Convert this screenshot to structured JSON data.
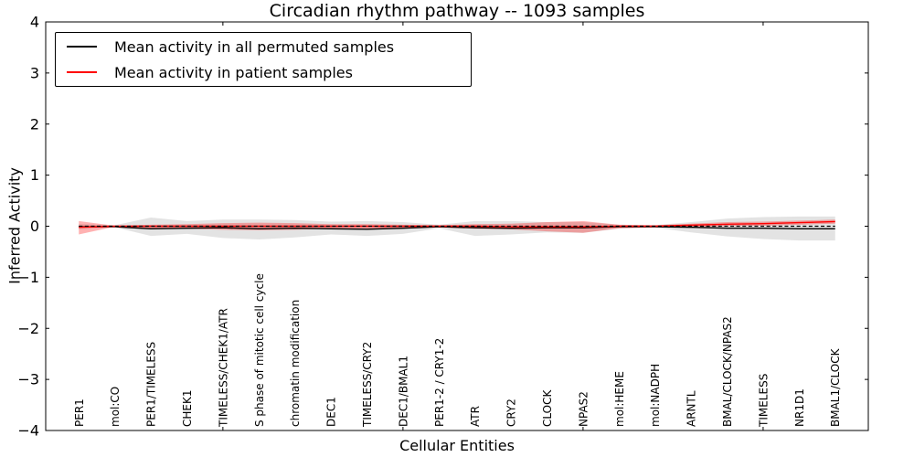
{
  "chart_data": {
    "type": "line",
    "title": "Circadian rhythm pathway -- 1093 samples",
    "xlabel": "Cellular Entities",
    "ylabel": "Inferred Activity",
    "ylim": [
      -4,
      4
    ],
    "xlim": [
      0.08,
      22.92
    ],
    "yticks": [
      -4,
      -3,
      -2,
      -1,
      0,
      1,
      2,
      3,
      4
    ],
    "xticks": [
      5,
      10,
      15,
      20
    ],
    "grid": false,
    "legend_position": "upper left",
    "zero_line": {
      "y": 0,
      "style": "dashed",
      "color": "#000000"
    },
    "categories": [
      "PER1",
      "mol:CO",
      "PER1/TIMELESS",
      "CHEK1",
      "TIMELESS/CHEK1/ATR",
      "S phase of mitotic cell cycle",
      "chromatin modification",
      "DEC1",
      "TIMELESS/CRY2",
      "DEC1/BMAL1",
      "PER1-2 / CRY1-2",
      "ATR",
      "CRY2",
      "CLOCK",
      "NPAS2",
      "mol:HEME",
      "mol:NADPH",
      "ARNTL",
      "BMAL/CLOCK/NPAS2",
      "TIMELESS",
      "NR1D1",
      "BMAL1/CLOCK"
    ],
    "series": [
      {
        "name": "Mean activity in all permuted samples",
        "color": "#000000",
        "band_color": "#808080",
        "band_opacity": 0.22,
        "values": [
          -0.01,
          -0.01,
          -0.05,
          -0.04,
          -0.03,
          -0.05,
          -0.04,
          -0.05,
          -0.06,
          -0.04,
          -0.01,
          -0.03,
          -0.04,
          -0.03,
          -0.03,
          -0.01,
          -0.01,
          -0.02,
          -0.04,
          -0.04,
          -0.05,
          -0.05
        ],
        "band_high": [
          0.04,
          0.02,
          0.17,
          0.1,
          0.13,
          0.13,
          0.12,
          0.09,
          0.1,
          0.08,
          0.03,
          0.1,
          0.1,
          0.08,
          0.08,
          0.03,
          0.02,
          0.08,
          0.15,
          0.18,
          0.19,
          0.19
        ],
        "band_low": [
          -0.06,
          -0.02,
          -0.19,
          -0.15,
          -0.23,
          -0.26,
          -0.22,
          -0.16,
          -0.19,
          -0.15,
          -0.04,
          -0.19,
          -0.16,
          -0.12,
          -0.13,
          -0.05,
          -0.03,
          -0.12,
          -0.2,
          -0.25,
          -0.28,
          -0.28
        ]
      },
      {
        "name": "Mean activity in patient samples",
        "color": "#ff0000",
        "band_color": "#ff0000",
        "band_opacity": 0.3,
        "values": [
          -0.02,
          0.0,
          0.0,
          0.0,
          0.0,
          0.0,
          0.0,
          0.0,
          0.0,
          0.0,
          0.0,
          0.0,
          -0.01,
          -0.01,
          -0.01,
          0.0,
          0.0,
          0.02,
          0.04,
          0.05,
          0.07,
          0.09
        ],
        "band_high": [
          0.1,
          0.01,
          0.03,
          0.04,
          0.06,
          0.07,
          0.06,
          0.04,
          0.04,
          0.03,
          0.02,
          0.04,
          0.05,
          0.08,
          0.1,
          0.03,
          0.02,
          0.05,
          0.08,
          0.09,
          0.11,
          0.13
        ],
        "band_low": [
          -0.16,
          -0.01,
          -0.04,
          -0.05,
          -0.07,
          -0.08,
          -0.07,
          -0.05,
          -0.05,
          -0.04,
          -0.02,
          -0.05,
          -0.06,
          -0.1,
          -0.13,
          -0.04,
          -0.02,
          -0.02,
          0.0,
          0.01,
          0.03,
          0.05
        ]
      }
    ]
  }
}
